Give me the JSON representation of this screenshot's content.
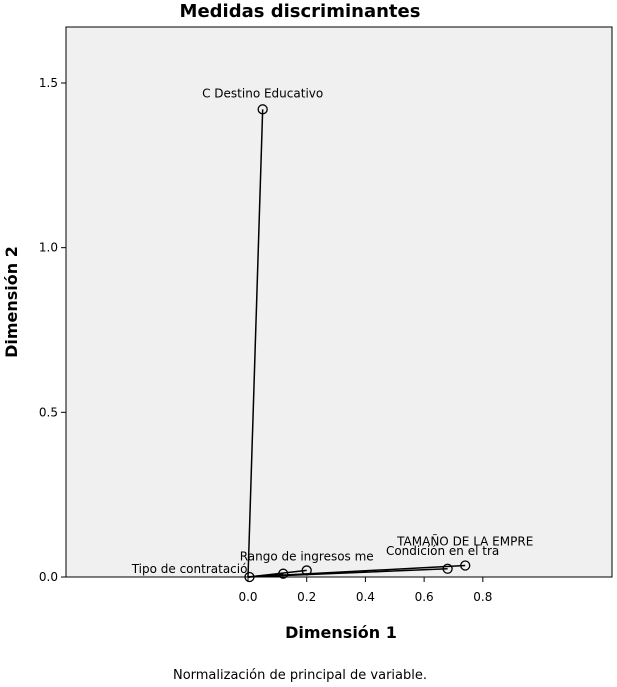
{
  "chart_data": {
    "type": "scatter",
    "title": "Medidas discriminantes",
    "xlabel": "Dimensión 1",
    "ylabel": "Dimensión 2",
    "footnote": "Normalización de principal de variable.",
    "xticks": [
      "0.0",
      "0.2",
      "0.4",
      "0.6",
      "0.8"
    ],
    "yticks": [
      "0.0",
      "0.5",
      "1.0",
      "1.5"
    ],
    "xlim": [
      -0.62,
      1.24
    ],
    "ylim": [
      0,
      1.67
    ],
    "grid": false,
    "connect_to_origin": true,
    "points": [
      {
        "label": "C Destino Educativo",
        "x": 0.05,
        "y": 1.42
      },
      {
        "label": "TAMAÑO DE LA EMPRE",
        "x": 0.74,
        "y": 0.035
      },
      {
        "label": "Condición en el tra",
        "x": 0.68,
        "y": 0.025
      },
      {
        "label": "Rango de ingresos me",
        "x": 0.2,
        "y": 0.02
      },
      {
        "label": "",
        "x": 0.12,
        "y": 0.01
      },
      {
        "label": "Tipo de contratació",
        "x": 0.005,
        "y": 0.0
      }
    ]
  }
}
